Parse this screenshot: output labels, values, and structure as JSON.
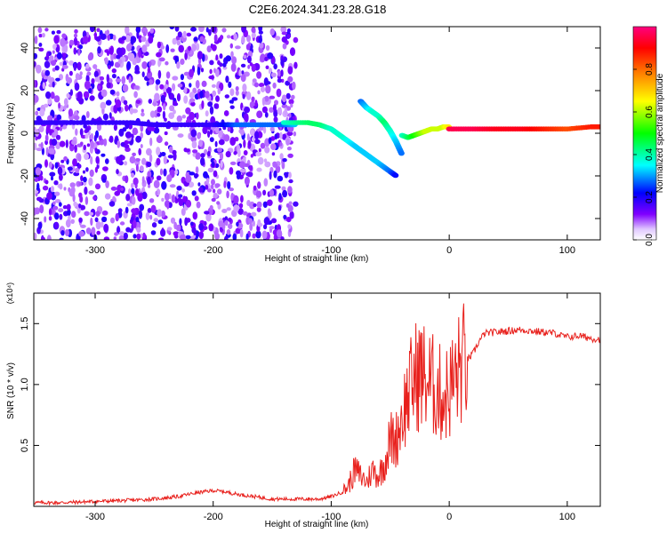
{
  "title": "C2E6.2024.341.23.28.G18",
  "chart_data": [
    {
      "type": "heatmap",
      "xlabel": "Height of straight line (km)",
      "ylabel": "Frequency (Hz)",
      "xlim": [
        -352,
        128
      ],
      "ylim": [
        -50,
        50
      ],
      "xticks": [
        -300,
        -200,
        -100,
        0,
        100
      ],
      "yticks": [
        -40,
        -20,
        0,
        20,
        40
      ],
      "colorbar": {
        "label": "Normalized spectral amplitude",
        "range": [
          0,
          1
        ],
        "ticks": [
          "0.0",
          "0.2",
          "0.4",
          "0.6",
          "0.8"
        ],
        "colormap": [
          "#ffffff",
          "#8000ff",
          "#0000ff",
          "#00ffff",
          "#00ff00",
          "#ffff00",
          "#ff8000",
          "#ff0000",
          "#ff0080"
        ]
      },
      "traces": [
        {
          "x": [
            -352,
            -330,
            -300,
            -270,
            -250,
            -230,
            -200,
            -180,
            -160,
            -140,
            -130
          ],
          "y": [
            5,
            5,
            5,
            5,
            4,
            4,
            4,
            4,
            4,
            4,
            4
          ],
          "amplitude": [
            0.2,
            0.2,
            0.2,
            0.2,
            0.2,
            0.2,
            0.2,
            0.3,
            0.3,
            0.3,
            0.35
          ]
        },
        {
          "x": [
            -140,
            -120,
            -110,
            -100,
            -90,
            -80,
            -70,
            -60,
            -50,
            -45
          ],
          "y": [
            5,
            5,
            4,
            2,
            -2,
            -6,
            -10,
            -14,
            -18,
            -20
          ],
          "amplitude": [
            0.4,
            0.45,
            0.45,
            0.4,
            0.4,
            0.35,
            0.35,
            0.35,
            0.3,
            0.25
          ]
        },
        {
          "x": [
            -75,
            -70,
            -65,
            -60,
            -55,
            -50,
            -45,
            -40
          ],
          "y": [
            15,
            12,
            10,
            8,
            5,
            1,
            -4,
            -10
          ],
          "amplitude": [
            0.3,
            0.35,
            0.4,
            0.4,
            0.45,
            0.4,
            0.35,
            0.3
          ]
        },
        {
          "x": [
            -40,
            -35,
            -30,
            -25,
            -20,
            -15,
            -10,
            -5,
            0
          ],
          "y": [
            -1,
            -2,
            -1,
            0,
            1,
            2,
            2,
            3,
            3
          ],
          "amplitude": [
            0.4,
            0.45,
            0.5,
            0.55,
            0.6,
            0.6,
            0.6,
            0.6,
            0.65
          ]
        },
        {
          "x": [
            0,
            20,
            40,
            60,
            80,
            100,
            120,
            128
          ],
          "y": [
            2,
            2,
            2,
            2,
            2,
            2,
            3,
            3
          ],
          "amplitude": [
            0.95,
            0.95,
            0.9,
            0.9,
            0.85,
            0.8,
            0.85,
            0.85
          ]
        }
      ]
    },
    {
      "type": "line",
      "xlabel": "Height of straight line (km)",
      "ylabel": "SNR (10 * v/v)",
      "y_multiplier": "(x10⁴)",
      "xlim": [
        -352,
        128
      ],
      "ylim": [
        0,
        1.75
      ],
      "xticks": [
        -300,
        -200,
        -100,
        0,
        100
      ],
      "yticks": [
        "0.5",
        "1.0",
        "1.5"
      ],
      "series": [
        {
          "color": "#e8201c",
          "x": [
            -352,
            -330,
            -300,
            -270,
            -250,
            -230,
            -215,
            -200,
            -190,
            -180,
            -165,
            -150,
            -130,
            -110,
            -100,
            -90,
            -85,
            -80,
            -75,
            -70,
            -65,
            -60,
            -55,
            -50,
            -45,
            -40,
            -35,
            -30,
            -25,
            -20,
            -15,
            -10,
            -5,
            0,
            5,
            10,
            15,
            20,
            25,
            30,
            40,
            50,
            60,
            70,
            80,
            90,
            95,
            100,
            110,
            120,
            128
          ],
          "y": [
            0.03,
            0.03,
            0.04,
            0.05,
            0.06,
            0.08,
            0.11,
            0.13,
            0.12,
            0.1,
            0.08,
            0.06,
            0.06,
            0.06,
            0.08,
            0.12,
            0.18,
            0.3,
            0.25,
            0.2,
            0.3,
            0.25,
            0.35,
            0.55,
            0.55,
            0.75,
            0.9,
            1.05,
            1.1,
            1.05,
            1.0,
            0.95,
            0.9,
            0.95,
            1.05,
            1.15,
            1.2,
            1.25,
            1.35,
            1.42,
            1.43,
            1.44,
            1.45,
            1.44,
            1.43,
            1.42,
            1.4,
            1.39,
            1.4,
            1.38,
            1.37
          ]
        }
      ]
    }
  ]
}
